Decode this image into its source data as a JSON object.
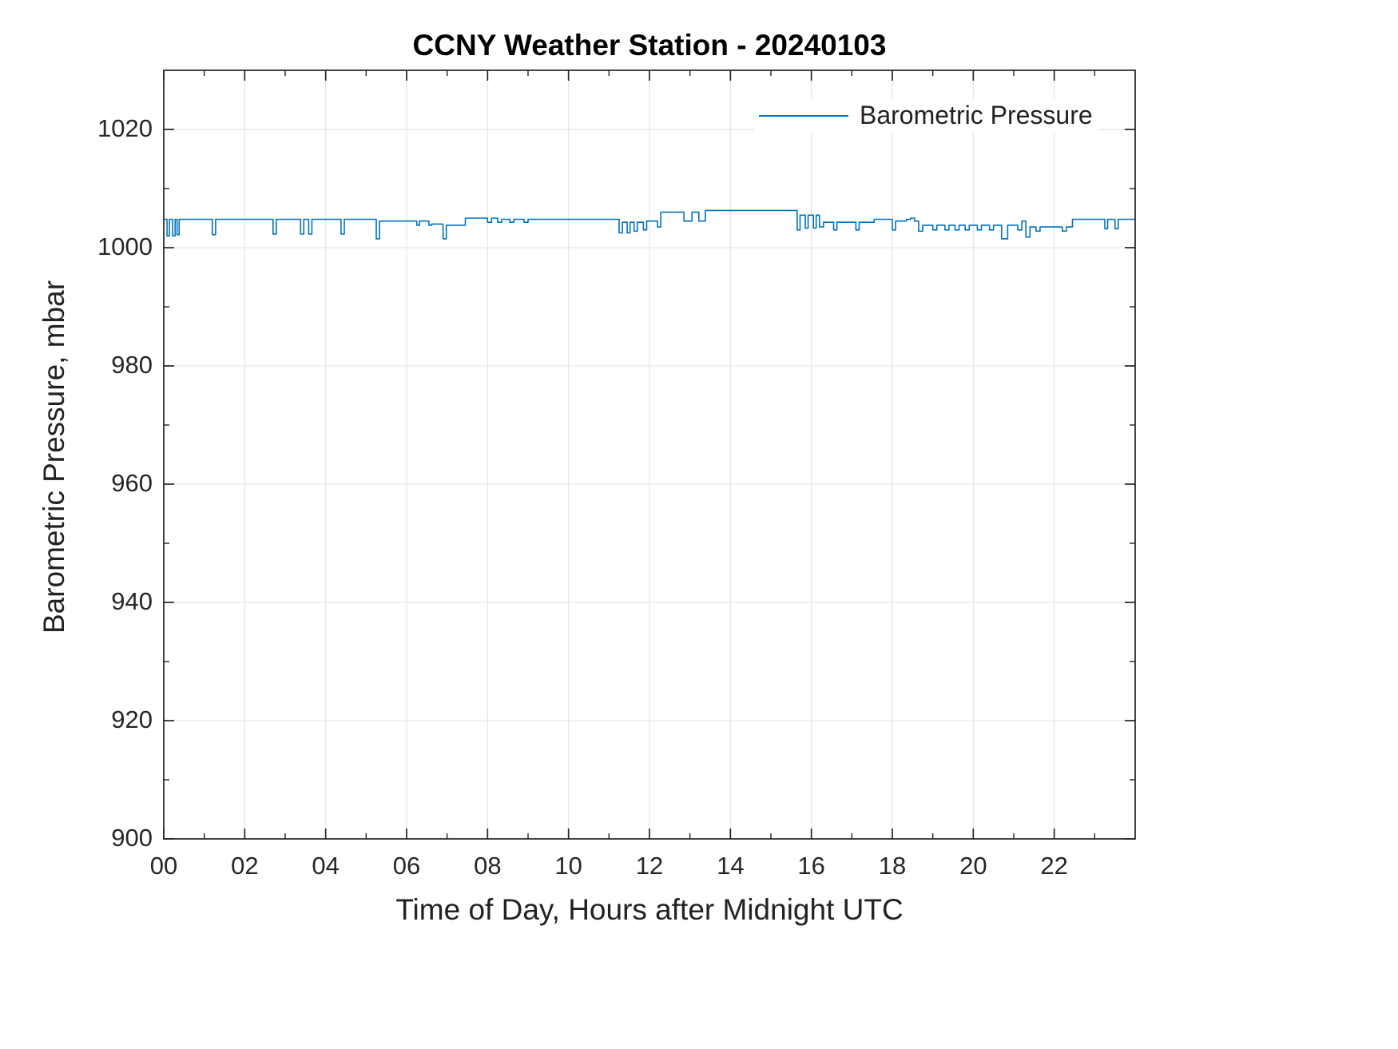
{
  "chart_data": {
    "type": "line",
    "title": "CCNY Weather Station - 20240103",
    "xlabel": "Time of Day, Hours after Midnight UTC",
    "ylabel": "Barometric Pressure, mbar",
    "xlim": [
      0,
      24
    ],
    "ylim": [
      900,
      1030
    ],
    "xticks": [
      0,
      2,
      4,
      6,
      8,
      10,
      12,
      14,
      16,
      18,
      20,
      22
    ],
    "xtick_labels": [
      "00",
      "02",
      "04",
      "06",
      "08",
      "10",
      "12",
      "14",
      "16",
      "18",
      "20",
      "22"
    ],
    "yticks": [
      900,
      920,
      940,
      960,
      980,
      1000,
      1020
    ],
    "ytick_labels": [
      "900",
      "920",
      "940",
      "960",
      "980",
      "1000",
      "1020"
    ],
    "grid": true,
    "legend": {
      "position": "top-right",
      "entries": [
        {
          "label": "Barometric Pressure",
          "color": "#0072BD"
        }
      ]
    },
    "colors": {
      "line": "#0072BD",
      "grid": "#e2e2e2",
      "axis": "#222222",
      "text": "#262626"
    },
    "series": [
      {
        "name": "Barometric Pressure",
        "color": "#0072BD",
        "units": "mbar",
        "segments": [
          [
            0.0,
            0.08,
            1004.8
          ],
          [
            0.08,
            0.14,
            1002.0
          ],
          [
            0.14,
            0.22,
            1004.8
          ],
          [
            0.22,
            0.28,
            1002.0
          ],
          [
            0.28,
            0.33,
            1004.8
          ],
          [
            0.33,
            0.38,
            1002.2
          ],
          [
            0.38,
            1.2,
            1004.8
          ],
          [
            1.2,
            1.28,
            1002.2
          ],
          [
            1.28,
            2.7,
            1004.8
          ],
          [
            2.7,
            2.78,
            1002.3
          ],
          [
            2.78,
            3.38,
            1004.8
          ],
          [
            3.38,
            3.46,
            1002.3
          ],
          [
            3.46,
            3.58,
            1004.8
          ],
          [
            3.58,
            3.66,
            1002.3
          ],
          [
            3.66,
            4.38,
            1004.8
          ],
          [
            4.38,
            4.46,
            1002.3
          ],
          [
            4.46,
            5.25,
            1004.8
          ],
          [
            5.25,
            5.33,
            1001.5
          ],
          [
            5.33,
            6.25,
            1004.5
          ],
          [
            6.25,
            6.32,
            1003.8
          ],
          [
            6.32,
            6.55,
            1004.5
          ],
          [
            6.55,
            6.62,
            1003.8
          ],
          [
            6.62,
            6.9,
            1004.0
          ],
          [
            6.9,
            6.98,
            1001.5
          ],
          [
            6.98,
            7.45,
            1003.8
          ],
          [
            7.45,
            8.0,
            1005.0
          ],
          [
            8.0,
            8.1,
            1004.3
          ],
          [
            8.1,
            8.25,
            1005.0
          ],
          [
            8.25,
            8.35,
            1004.3
          ],
          [
            8.35,
            8.55,
            1004.8
          ],
          [
            8.55,
            8.65,
            1004.3
          ],
          [
            8.65,
            8.9,
            1004.8
          ],
          [
            8.9,
            9.0,
            1004.3
          ],
          [
            9.0,
            11.25,
            1004.8
          ],
          [
            11.25,
            11.33,
            1002.5
          ],
          [
            11.33,
            11.45,
            1004.3
          ],
          [
            11.45,
            11.52,
            1002.5
          ],
          [
            11.52,
            11.62,
            1004.3
          ],
          [
            11.62,
            11.7,
            1002.8
          ],
          [
            11.7,
            11.85,
            1004.3
          ],
          [
            11.85,
            11.93,
            1003.0
          ],
          [
            11.93,
            12.2,
            1004.5
          ],
          [
            12.2,
            12.28,
            1003.5
          ],
          [
            12.28,
            12.85,
            1006.0
          ],
          [
            12.85,
            13.05,
            1004.5
          ],
          [
            13.05,
            13.22,
            1006.0
          ],
          [
            13.22,
            13.38,
            1004.5
          ],
          [
            13.38,
            15.65,
            1006.3
          ],
          [
            15.65,
            15.72,
            1003.0
          ],
          [
            15.72,
            15.85,
            1005.5
          ],
          [
            15.85,
            15.92,
            1003.3
          ],
          [
            15.92,
            16.05,
            1005.5
          ],
          [
            16.05,
            16.12,
            1003.3
          ],
          [
            16.12,
            16.2,
            1005.5
          ],
          [
            16.2,
            16.3,
            1003.5
          ],
          [
            16.3,
            16.55,
            1004.3
          ],
          [
            16.55,
            16.63,
            1003.0
          ],
          [
            16.63,
            17.1,
            1004.3
          ],
          [
            17.1,
            17.18,
            1003.0
          ],
          [
            17.18,
            17.55,
            1004.3
          ],
          [
            17.55,
            18.0,
            1004.8
          ],
          [
            18.0,
            18.08,
            1003.0
          ],
          [
            18.08,
            18.35,
            1004.5
          ],
          [
            18.35,
            18.45,
            1004.8
          ],
          [
            18.45,
            18.55,
            1005.0
          ],
          [
            18.55,
            18.65,
            1004.5
          ],
          [
            18.65,
            18.75,
            1002.8
          ],
          [
            18.75,
            19.0,
            1003.8
          ],
          [
            19.0,
            19.1,
            1003.0
          ],
          [
            19.1,
            19.3,
            1003.8
          ],
          [
            19.3,
            19.4,
            1003.0
          ],
          [
            19.4,
            19.55,
            1003.8
          ],
          [
            19.55,
            19.65,
            1003.0
          ],
          [
            19.65,
            19.8,
            1003.8
          ],
          [
            19.8,
            19.9,
            1003.0
          ],
          [
            19.9,
            20.1,
            1003.8
          ],
          [
            20.1,
            20.2,
            1003.0
          ],
          [
            20.2,
            20.4,
            1003.8
          ],
          [
            20.4,
            20.5,
            1003.0
          ],
          [
            20.5,
            20.7,
            1003.8
          ],
          [
            20.7,
            20.85,
            1001.5
          ],
          [
            20.85,
            21.1,
            1003.8
          ],
          [
            21.1,
            21.2,
            1003.0
          ],
          [
            21.2,
            21.3,
            1004.5
          ],
          [
            21.3,
            21.4,
            1001.8
          ],
          [
            21.4,
            21.55,
            1003.5
          ],
          [
            21.55,
            21.65,
            1002.8
          ],
          [
            21.65,
            22.2,
            1003.5
          ],
          [
            22.2,
            22.3,
            1002.8
          ],
          [
            22.3,
            22.45,
            1003.5
          ],
          [
            22.45,
            23.25,
            1004.8
          ],
          [
            23.25,
            23.32,
            1003.2
          ],
          [
            23.32,
            23.5,
            1004.8
          ],
          [
            23.5,
            23.58,
            1003.2
          ],
          [
            23.58,
            24.0,
            1004.8
          ]
        ]
      }
    ]
  }
}
